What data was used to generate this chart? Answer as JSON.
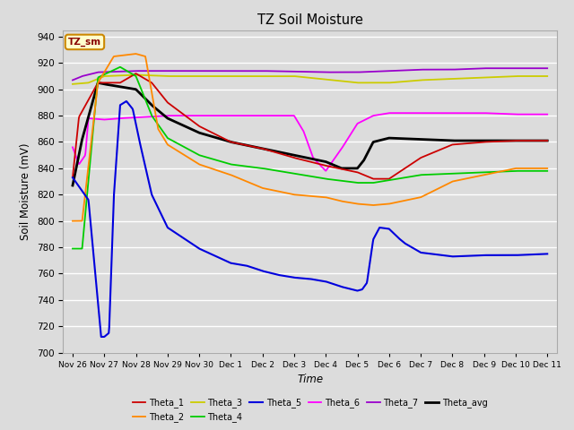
{
  "title": "TZ Soil Moisture",
  "ylabel": "Soil Moisture (mV)",
  "xlabel": "Time",
  "ylim": [
    700,
    945
  ],
  "xlim": [
    -0.3,
    15.3
  ],
  "bg_color": "#dcdcdc",
  "grid_color": "white",
  "legend_box_label": "TZ_sm",
  "series_colors": {
    "Theta_1": "#cc0000",
    "Theta_2": "#ff8800",
    "Theta_3": "#cccc00",
    "Theta_4": "#00cc00",
    "Theta_5": "#0000dd",
    "Theta_6": "#ff00ff",
    "Theta_7": "#9900cc",
    "Theta_avg": "#000000"
  },
  "series_lw": {
    "Theta_1": 1.3,
    "Theta_2": 1.3,
    "Theta_3": 1.3,
    "Theta_4": 1.3,
    "Theta_5": 1.5,
    "Theta_6": 1.3,
    "Theta_7": 1.3,
    "Theta_avg": 2.0
  },
  "xtick_labels": [
    "Nov 26",
    "Nov 27",
    "Nov 28",
    "Nov 29",
    "Nov 30",
    "Dec 1",
    "Dec 2",
    "Dec 3",
    "Dec 4",
    "Dec 5",
    "Dec 6",
    "Dec 7",
    "Dec 8",
    "Dec 9",
    "Dec 10",
    "Dec 11"
  ],
  "yticks": [
    700,
    720,
    740,
    760,
    780,
    800,
    820,
    840,
    860,
    880,
    900,
    920,
    940
  ],
  "legend_order": [
    "Theta_1",
    "Theta_2",
    "Theta_3",
    "Theta_4",
    "Theta_5",
    "Theta_6",
    "Theta_7",
    "Theta_avg"
  ]
}
